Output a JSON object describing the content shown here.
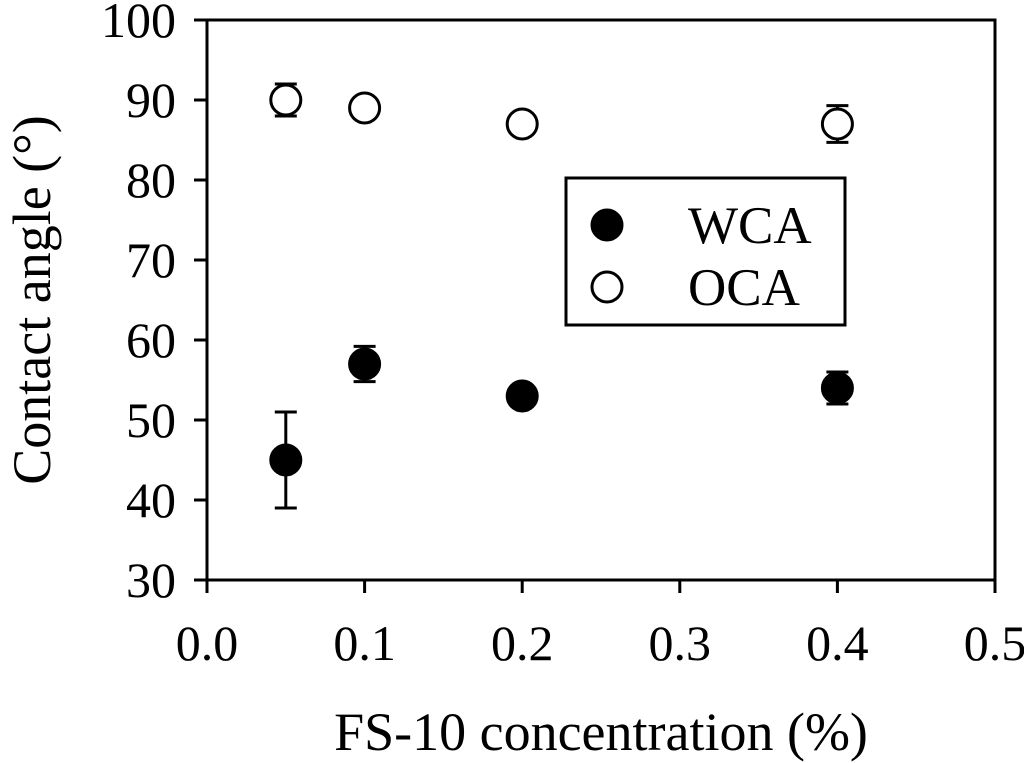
{
  "figure": {
    "background": "#ffffff",
    "ink": "#000000"
  },
  "chart_data": {
    "type": "scatter",
    "title": "",
    "xlabel": "FS-10 concentration (%)",
    "ylabel": "Contact angle (°)",
    "xlim": [
      0,
      0.5
    ],
    "ylim": [
      30,
      100
    ],
    "xticks": [
      0,
      0.1,
      0.2,
      0.3,
      0.4,
      0.5
    ],
    "xtick_labels": [
      "0.0",
      "0.1",
      "0.2",
      "0.3",
      "0.4",
      "0.5"
    ],
    "yticks": [
      30,
      40,
      50,
      60,
      70,
      80,
      90,
      100
    ],
    "ytick_labels": [
      "30",
      "40",
      "50",
      "60",
      "70",
      "80",
      "90",
      "100"
    ],
    "grid": false,
    "frame": "box",
    "marker_color": "#000000",
    "legend": {
      "position": "inside upper-right",
      "entries": [
        {
          "label": "WCA",
          "marker": "filled-circle"
        },
        {
          "label": "OCA",
          "marker": "open-circle"
        }
      ]
    },
    "series": [
      {
        "name": "WCA",
        "marker": "filled-circle",
        "color": "#000000",
        "x": [
          0.05,
          0.1,
          0.2,
          0.4
        ],
        "y": [
          45,
          57,
          53,
          54
        ],
        "yerr": [
          6,
          2.2,
          0,
          2
        ]
      },
      {
        "name": "OCA",
        "marker": "open-circle",
        "color": "#000000",
        "x": [
          0.05,
          0.1,
          0.2,
          0.4
        ],
        "y": [
          90,
          89,
          87,
          87
        ],
        "yerr": [
          2,
          0,
          0,
          2.3
        ]
      }
    ]
  }
}
